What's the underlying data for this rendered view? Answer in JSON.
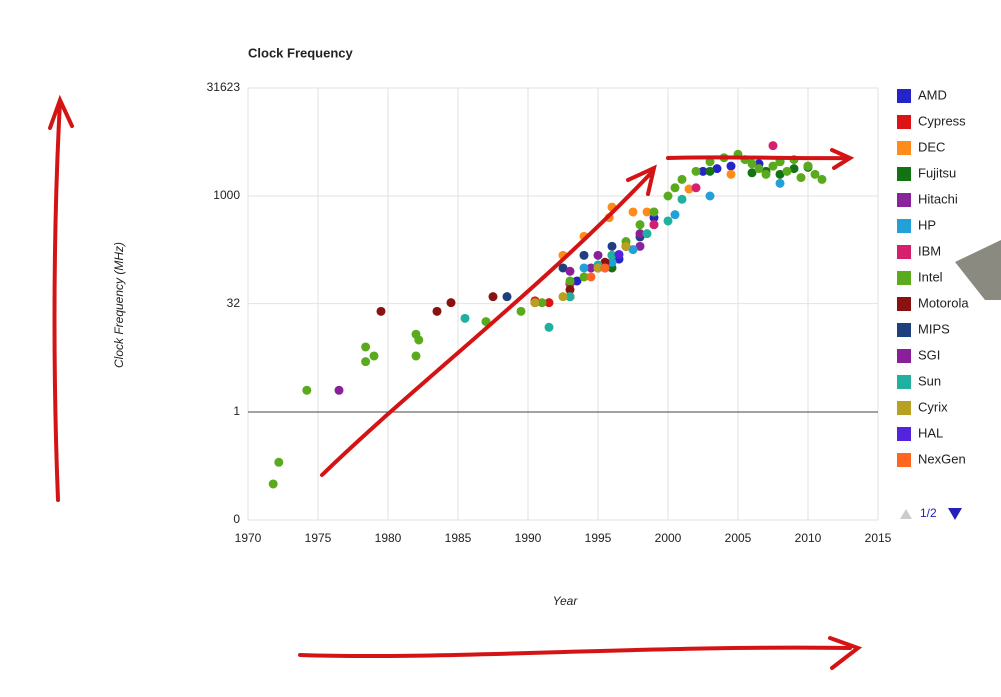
{
  "chart_data": {
    "type": "scatter",
    "title": "Clock Frequency",
    "x_label": "Year",
    "y_label": "Clock Frequency (MHz)",
    "log_y": true,
    "grid": true,
    "baseline": 1,
    "xlim": [
      1970,
      2015
    ],
    "xticks": [
      1970,
      1975,
      1980,
      1985,
      1990,
      1995,
      2000,
      2005,
      2010,
      2015
    ],
    "ylim": [
      0.0316,
      31623
    ],
    "yticks": [
      {
        "value": 0.0316,
        "label": "0"
      },
      1,
      32,
      1000,
      31623
    ],
    "legend_position": "right",
    "legend_page": "1/2",
    "series": [
      {
        "name": "AMD",
        "color": "#2424c8",
        "x": [
          1993.5,
          1995,
          1996.5,
          1999,
          2002.5,
          2003.5,
          2004.5,
          2006.5,
          2008,
          2010
        ],
        "values": [
          66,
          100,
          133,
          500,
          2200,
          2400,
          2600,
          2800,
          3000,
          2600
        ]
      },
      {
        "name": "Cypress",
        "color": "#dc1414",
        "x": [
          1990.5,
          1991.5,
          1993
        ],
        "values": [
          35,
          33,
          40
        ]
      },
      {
        "name": "DEC",
        "color": "#ff8c1a",
        "x": [
          1992.5,
          1994,
          1995.8,
          1996,
          1997.5,
          1998.5,
          1999,
          2001.5,
          2004.5
        ],
        "values": [
          150,
          275,
          500,
          700,
          600,
          600,
          600,
          1250,
          2000
        ]
      },
      {
        "name": "Fujitsu",
        "color": "#137313",
        "x": [
          1993,
          1996,
          2003,
          2006,
          2007,
          2008,
          2009,
          2010
        ],
        "values": [
          60,
          100,
          2200,
          2100,
          2200,
          2000,
          2400,
          2500
        ]
      },
      {
        "name": "Hitachi",
        "color": "#8a249a",
        "x": [
          1993,
          1994.5,
          1996,
          1998
        ],
        "values": [
          60,
          100,
          120,
          200
        ]
      },
      {
        "name": "HP",
        "color": "#22a0d8",
        "x": [
          1994,
          1996,
          1997.5,
          1999,
          2000.5,
          2003,
          2008
        ],
        "values": [
          100,
          120,
          180,
          400,
          550,
          1000,
          1500
        ]
      },
      {
        "name": "IBM",
        "color": "#d6206e",
        "x": [
          1993,
          1995,
          1997,
          1999,
          2002,
          2007.5
        ],
        "values": [
          60,
          100,
          200,
          400,
          1300,
          5000
        ]
      },
      {
        "name": "Intel",
        "color": "#5aaa1e",
        "x": [
          1971.8,
          1972.2,
          1974.2,
          1978.4,
          1978.4,
          1979,
          1982,
          1982,
          1982.2,
          1987,
          1989.5,
          1991,
          1993,
          1994,
          1995,
          1996,
          1997,
          1998,
          1999,
          2000,
          2000.5,
          2001,
          2002,
          2003,
          2004,
          2005,
          2005.5,
          2006,
          2006.5,
          2007,
          2007.5,
          2008,
          2008.5,
          2009,
          2009.5,
          2010,
          2010.5,
          2011
        ],
        "values": [
          0.1,
          0.2,
          2,
          5,
          8,
          6,
          6,
          12,
          10,
          18,
          25,
          33,
          66,
          75,
          100,
          150,
          233,
          400,
          600,
          1000,
          1300,
          1700,
          2200,
          3000,
          3400,
          3800,
          3200,
          2800,
          2400,
          2000,
          2600,
          3000,
          2200,
          3200,
          1800,
          2600,
          2000,
          1700
        ]
      },
      {
        "name": "Motorola",
        "color": "#8b1212",
        "x": [
          1979.5,
          1983.5,
          1984.5,
          1987.5,
          1990.5,
          1993,
          1995.5,
          1997
        ],
        "values": [
          25,
          25,
          33,
          40,
          33,
          50,
          120,
          200
        ]
      },
      {
        "name": "MIPS",
        "color": "#1f3f7f",
        "x": [
          1988.5,
          1992.5,
          1994,
          1996,
          1998
        ],
        "values": [
          40,
          100,
          150,
          200,
          270
        ]
      },
      {
        "name": "SGI",
        "color": "#8a1f9a",
        "x": [
          1976.5,
          1993,
          1995,
          1998
        ],
        "values": [
          2,
          90,
          150,
          300
        ]
      },
      {
        "name": "Sun",
        "color": "#20b0a0",
        "x": [
          1985.5,
          1991.5,
          1993,
          1995,
          1996,
          1998.5,
          2000,
          2001
        ],
        "values": [
          20,
          15,
          40,
          110,
          150,
          300,
          450,
          900
        ]
      },
      {
        "name": "Cyrix",
        "color": "#b8a020",
        "x": [
          1990.5,
          1992.5,
          1995,
          1997
        ],
        "values": [
          33,
          40,
          100,
          200
        ]
      },
      {
        "name": "HAL",
        "color": "#5522dd",
        "x": [
          1995.5,
          1996.5
        ],
        "values": [
          100,
          154
        ]
      },
      {
        "name": "NexGen",
        "color": "#ff6622",
        "x": [
          1994.5,
          1995.5
        ],
        "values": [
          75,
          100
        ]
      }
    ]
  }
}
